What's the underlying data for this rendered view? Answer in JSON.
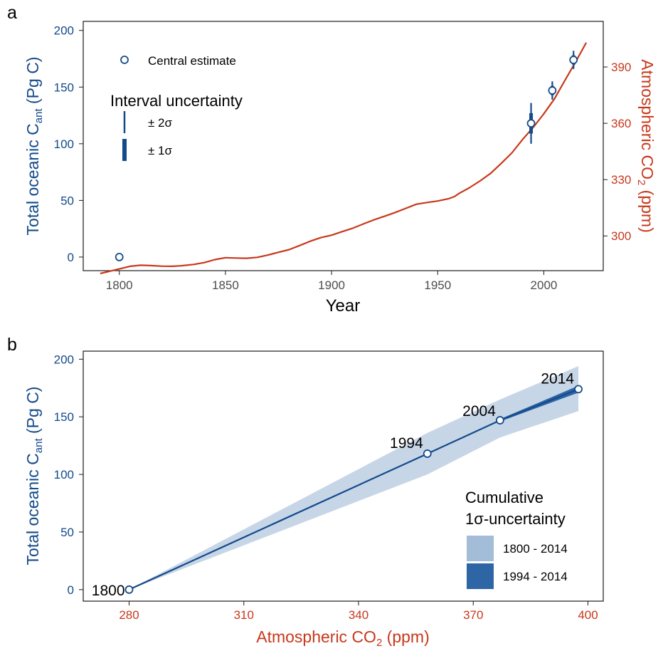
{
  "colors": {
    "cant_blue": "#124a8a",
    "co2_red": "#c8381b",
    "band_light": "#c7d6e7",
    "band_dark": "#2e65a5",
    "legend_light": "#a3bcd8",
    "axis": "#1a1a1a",
    "tick_text": "#4d4d4d"
  },
  "chart_data": [
    {
      "panel_label": "a",
      "type": "line",
      "xlabel": "Year",
      "ylabel": {
        "main": "Total oceanic C",
        "sub": "ant",
        "end": " (Pg C)"
      },
      "y2label": {
        "main": "Atmospheric CO",
        "sub": "2",
        "end": " (ppm)"
      },
      "xlim": [
        1783,
        2028
      ],
      "ylim": [
        -12,
        208
      ],
      "y2lim": [
        281.5,
        414.3
      ],
      "xticks": [
        "1800",
        "1850",
        "1900",
        "1950",
        "2000"
      ],
      "yticks": [
        "0",
        "50",
        "100",
        "150",
        "200"
      ],
      "y2ticks": [
        "300",
        "330",
        "360",
        "390"
      ],
      "co2_series": {
        "name": "Atmospheric CO2",
        "x": [
          1791,
          1800,
          1805,
          1810,
          1815,
          1820,
          1825,
          1830,
          1835,
          1840,
          1845,
          1850,
          1855,
          1860,
          1865,
          1870,
          1875,
          1880,
          1885,
          1890,
          1895,
          1900,
          1905,
          1910,
          1915,
          1920,
          1925,
          1930,
          1935,
          1940,
          1945,
          1950,
          1955,
          1958,
          1960,
          1965,
          1970,
          1975,
          1980,
          1985,
          1990,
          1995,
          2000,
          2005,
          2010,
          2015,
          2020
        ],
        "y": [
          280.0,
          282.4,
          283.8,
          284.4,
          284.2,
          283.9,
          283.8,
          284.2,
          284.8,
          285.8,
          287.4,
          288.4,
          288.2,
          288.1,
          288.6,
          289.8,
          291.3,
          292.7,
          294.9,
          297.2,
          299.1,
          300.4,
          302.3,
          304.1,
          306.4,
          308.6,
          310.5,
          312.5,
          314.7,
          316.9,
          317.8,
          318.6,
          319.8,
          321.0,
          322.6,
          325.7,
          329.3,
          333.4,
          338.7,
          344.3,
          351.4,
          357.8,
          365.1,
          373.0,
          383.0,
          392.7,
          403.0
        ]
      },
      "cant_estimates": {
        "name": "Central estimate",
        "x": [
          1800,
          1994,
          2004,
          2014
        ],
        "y": [
          0,
          118,
          147,
          174
        ],
        "sigma": [
          0,
          9,
          4,
          4
        ]
      },
      "legend": {
        "marker_label": "Central estimate",
        "title": "Interval uncertainty",
        "two_sigma": "± 2σ",
        "one_sigma": "± 1σ"
      }
    },
    {
      "panel_label": "b",
      "type": "line",
      "xlabel": {
        "main": "Atmospheric CO",
        "sub": "2",
        "end": " (ppm)"
      },
      "ylabel": {
        "main": "Total oceanic C",
        "sub": "ant",
        "end": " (Pg C)"
      },
      "xlim": [
        268,
        404
      ],
      "ylim": [
        -10,
        207
      ],
      "xticks": [
        "280",
        "310",
        "340",
        "370",
        "400"
      ],
      "yticks": [
        "0",
        "50",
        "100",
        "150",
        "200"
      ],
      "series": {
        "name": "Total oceanic Cant",
        "x": [
          280,
          358,
          377,
          397.5
        ],
        "y": [
          0,
          118,
          147,
          174
        ],
        "point_labels": [
          "1800",
          "1994",
          "2004",
          "2014"
        ]
      },
      "band_1800_2014": {
        "x": [
          280,
          358,
          377,
          397.5
        ],
        "lower": [
          0,
          100,
          132,
          155
        ],
        "upper": [
          0,
          136,
          165,
          194
        ]
      },
      "band_1994_2014": {
        "x": [
          377,
          397.5
        ],
        "lower": [
          146,
          171
        ],
        "upper": [
          148,
          177
        ]
      },
      "legend": {
        "title_line1": "Cumulative",
        "title_line2": "1σ-uncertainty",
        "item1": "1800 - 2014",
        "item2": "1994 - 2014"
      }
    }
  ]
}
